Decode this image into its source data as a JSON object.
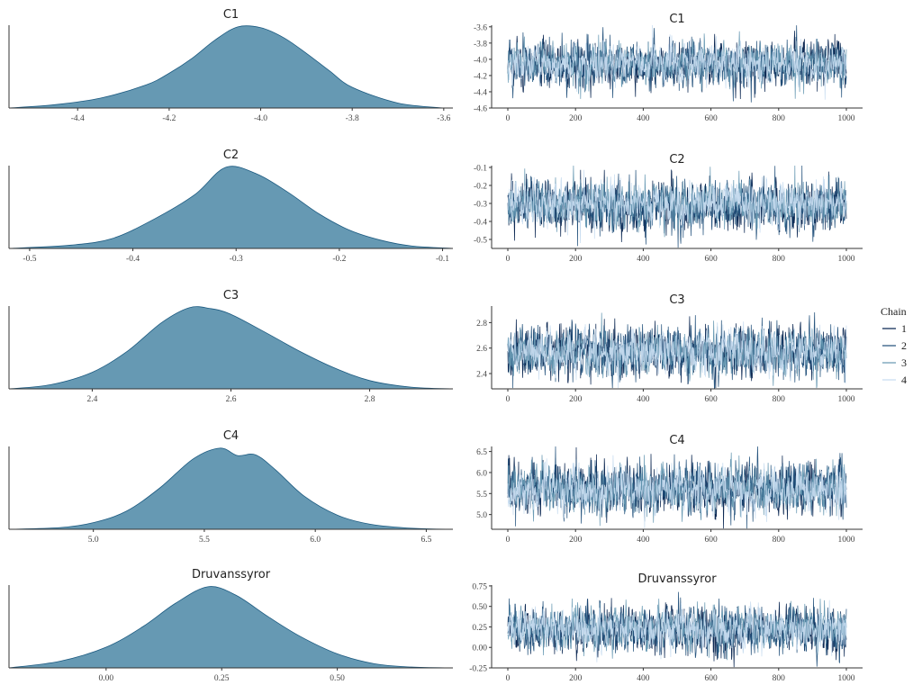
{
  "chart_data": [
    {
      "type": "area",
      "panel": "density",
      "title": "C1",
      "xlim": [
        -4.55,
        -3.58
      ],
      "xticks": [
        -4.4,
        -4.2,
        -4.0,
        -3.8,
        -3.6
      ],
      "xtick_labels": [
        "-4.4",
        "-4.2",
        "-4.0",
        "-3.8",
        "-3.6"
      ],
      "x": [
        -4.55,
        -4.45,
        -4.35,
        -4.25,
        -4.2,
        -4.15,
        -4.1,
        -4.05,
        -4.0,
        -3.95,
        -3.9,
        -3.85,
        -3.8,
        -3.7,
        -3.6
      ],
      "y": [
        0.0,
        0.04,
        0.12,
        0.28,
        0.42,
        0.6,
        0.82,
        0.98,
        0.97,
        0.85,
        0.66,
        0.45,
        0.25,
        0.06,
        0.0
      ]
    },
    {
      "type": "line",
      "panel": "trace",
      "title": "C1",
      "xlim": [
        0,
        1000
      ],
      "ylim": [
        -4.6,
        -3.58
      ],
      "xticks": [
        0,
        200,
        400,
        600,
        800,
        1000
      ],
      "xtick_labels": [
        "0",
        "200",
        "400",
        "600",
        "800",
        "1000"
      ],
      "yticks": [
        -4.6,
        -4.4,
        -4.2,
        -4.0,
        -3.8,
        -3.6
      ],
      "ytick_labels": [
        "-4.6",
        "-4.4",
        "-4.2",
        "-4.0",
        "-3.8",
        "-3.6"
      ],
      "series": [
        {
          "name": "1",
          "mean": -4.06,
          "sd": 0.14
        },
        {
          "name": "2",
          "mean": -4.06,
          "sd": 0.14
        },
        {
          "name": "3",
          "mean": -4.05,
          "sd": 0.13
        },
        {
          "name": "4",
          "mean": -4.05,
          "sd": 0.12
        }
      ]
    },
    {
      "type": "area",
      "panel": "density",
      "title": "C2",
      "xlim": [
        -0.52,
        -0.09
      ],
      "xticks": [
        -0.5,
        -0.4,
        -0.3,
        -0.2,
        -0.1
      ],
      "xtick_labels": [
        "-0.5",
        "-0.4",
        "-0.3",
        "-0.2",
        "-0.1"
      ],
      "x": [
        -0.52,
        -0.46,
        -0.42,
        -0.38,
        -0.34,
        -0.31,
        -0.28,
        -0.25,
        -0.22,
        -0.19,
        -0.16,
        -0.13,
        -0.09
      ],
      "y": [
        0.0,
        0.04,
        0.12,
        0.35,
        0.65,
        0.98,
        0.9,
        0.68,
        0.42,
        0.22,
        0.1,
        0.03,
        0.0
      ]
    },
    {
      "type": "line",
      "panel": "trace",
      "title": "C2",
      "xlim": [
        0,
        1000
      ],
      "ylim": [
        -0.55,
        -0.09
      ],
      "xticks": [
        0,
        200,
        400,
        600,
        800,
        1000
      ],
      "xtick_labels": [
        "0",
        "200",
        "400",
        "600",
        "800",
        "1000"
      ],
      "yticks": [
        -0.5,
        -0.4,
        -0.3,
        -0.2,
        -0.1
      ],
      "ytick_labels": [
        "-0.5",
        "-0.4",
        "-0.3",
        "-0.2",
        "-0.1"
      ],
      "series": [
        {
          "name": "1",
          "mean": -0.31,
          "sd": 0.07
        },
        {
          "name": "2",
          "mean": -0.31,
          "sd": 0.07
        },
        {
          "name": "3",
          "mean": -0.3,
          "sd": 0.065
        },
        {
          "name": "4",
          "mean": -0.3,
          "sd": 0.06
        }
      ]
    },
    {
      "type": "area",
      "panel": "density",
      "title": "C3",
      "xlim": [
        2.28,
        2.92
      ],
      "xticks": [
        2.4,
        2.6,
        2.8
      ],
      "xtick_labels": [
        "2.4",
        "2.6",
        "2.8"
      ],
      "x": [
        2.28,
        2.34,
        2.4,
        2.45,
        2.5,
        2.54,
        2.57,
        2.6,
        2.65,
        2.7,
        2.75,
        2.8,
        2.86,
        2.92
      ],
      "y": [
        0.0,
        0.05,
        0.2,
        0.45,
        0.8,
        0.98,
        0.97,
        0.9,
        0.68,
        0.45,
        0.25,
        0.1,
        0.02,
        0.0
      ]
    },
    {
      "type": "line",
      "panel": "trace",
      "title": "C3",
      "xlim": [
        0,
        1000
      ],
      "ylim": [
        2.28,
        2.93
      ],
      "xticks": [
        0,
        200,
        400,
        600,
        800,
        1000
      ],
      "xtick_labels": [
        "0",
        "200",
        "400",
        "600",
        "800",
        "1000"
      ],
      "yticks": [
        2.4,
        2.6,
        2.8
      ],
      "ytick_labels": [
        "2.4",
        "2.6",
        "2.8"
      ],
      "series": [
        {
          "name": "1",
          "mean": 2.57,
          "sd": 0.1
        },
        {
          "name": "2",
          "mean": 2.57,
          "sd": 0.1
        },
        {
          "name": "3",
          "mean": 2.57,
          "sd": 0.09
        },
        {
          "name": "4",
          "mean": 2.57,
          "sd": 0.085
        }
      ]
    },
    {
      "type": "area",
      "panel": "density",
      "title": "C4",
      "xlim": [
        4.62,
        6.62
      ],
      "xticks": [
        5.0,
        5.5,
        6.0,
        6.5
      ],
      "xtick_labels": [
        "5.0",
        "5.5",
        "6.0",
        "6.5"
      ],
      "x": [
        4.62,
        4.85,
        5.0,
        5.15,
        5.3,
        5.45,
        5.57,
        5.65,
        5.73,
        5.82,
        5.95,
        6.1,
        6.25,
        6.45,
        6.62
      ],
      "y": [
        0.0,
        0.02,
        0.08,
        0.22,
        0.5,
        0.85,
        0.98,
        0.89,
        0.9,
        0.72,
        0.4,
        0.17,
        0.06,
        0.01,
        0.0
      ]
    },
    {
      "type": "line",
      "panel": "trace",
      "title": "C4",
      "xlim": [
        0,
        1000
      ],
      "ylim": [
        4.65,
        6.62
      ],
      "xticks": [
        0,
        200,
        400,
        600,
        800,
        1000
      ],
      "xtick_labels": [
        "0",
        "200",
        "400",
        "600",
        "800",
        "1000"
      ],
      "yticks": [
        5.0,
        5.5,
        6.0,
        6.5
      ],
      "ytick_labels": [
        "5.0",
        "5.5",
        "6.0",
        "6.5"
      ],
      "series": [
        {
          "name": "1",
          "mean": 5.62,
          "sd": 0.3
        },
        {
          "name": "2",
          "mean": 5.62,
          "sd": 0.3
        },
        {
          "name": "3",
          "mean": 5.6,
          "sd": 0.28
        },
        {
          "name": "4",
          "mean": 5.6,
          "sd": 0.26
        }
      ]
    },
    {
      "type": "area",
      "panel": "density",
      "title": "Druvanssyror",
      "xlim": [
        -0.21,
        0.75
      ],
      "xticks": [
        0.0,
        0.25,
        0.5
      ],
      "xtick_labels": [
        "0.00",
        "0.25",
        "0.50"
      ],
      "x": [
        -0.21,
        -0.1,
        0.0,
        0.08,
        0.15,
        0.22,
        0.28,
        0.35,
        0.42,
        0.5,
        0.58,
        0.66,
        0.75
      ],
      "y": [
        0.0,
        0.08,
        0.25,
        0.5,
        0.78,
        0.98,
        0.88,
        0.62,
        0.38,
        0.17,
        0.05,
        0.01,
        0.0
      ]
    },
    {
      "type": "line",
      "panel": "trace",
      "title": "Druvanssyror",
      "xlim": [
        0,
        1000
      ],
      "ylim": [
        -0.25,
        0.76
      ],
      "xticks": [
        0,
        200,
        400,
        600,
        800,
        1000
      ],
      "xtick_labels": [
        "0",
        "200",
        "400",
        "600",
        "800",
        "1000"
      ],
      "yticks": [
        -0.25,
        0.0,
        0.25,
        0.5,
        0.75
      ],
      "ytick_labels": [
        "-0.25",
        "0.00",
        "0.25",
        "0.50",
        "0.75"
      ],
      "series": [
        {
          "name": "1",
          "mean": 0.22,
          "sd": 0.14
        },
        {
          "name": "2",
          "mean": 0.22,
          "sd": 0.14
        },
        {
          "name": "3",
          "mean": 0.23,
          "sd": 0.13
        },
        {
          "name": "4",
          "mean": 0.23,
          "sd": 0.12
        }
      ]
    }
  ],
  "legend": {
    "title": "Chain",
    "placement": "right",
    "items": [
      {
        "label": "1",
        "color": "#011f4b"
      },
      {
        "label": "2",
        "color": "#1f4e79"
      },
      {
        "label": "3",
        "color": "#6497b1"
      },
      {
        "label": "4",
        "color": "#c6dbef"
      }
    ]
  },
  "colors": {
    "density_fill": "#6699b3",
    "density_line": "#1c5a80",
    "axis": "#333333"
  }
}
